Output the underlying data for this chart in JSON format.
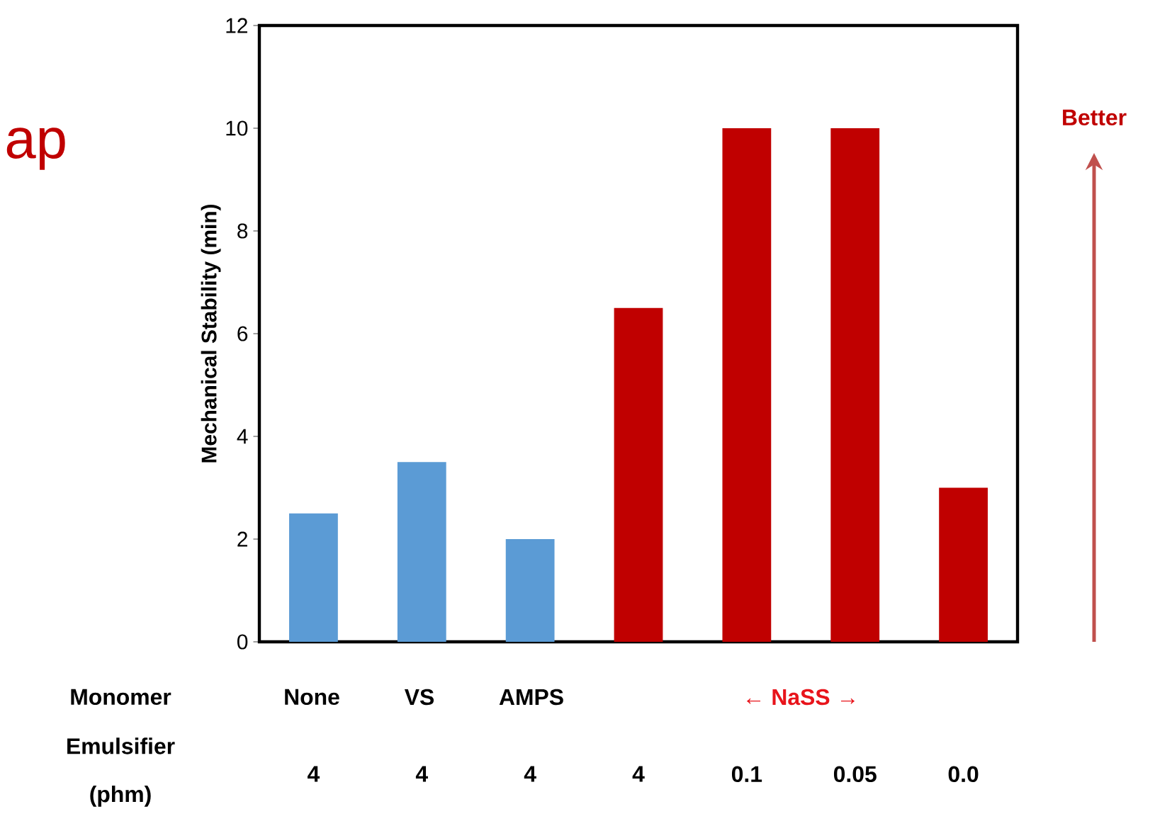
{
  "chart_data": {
    "type": "bar",
    "categories": [
      "4",
      "4",
      "4",
      "4",
      "0.1",
      "0.05",
      "0.0"
    ],
    "values": [
      2.5,
      3.5,
      2,
      6.5,
      10,
      10,
      3
    ],
    "colors": [
      "#5b9bd5",
      "#5b9bd5",
      "#5b9bd5",
      "#c00000",
      "#c00000",
      "#c00000",
      "#c00000"
    ],
    "ylabel": "Mechanical Stability (min)",
    "ylim": [
      0,
      12
    ],
    "yticks": [
      0,
      2,
      4,
      6,
      8,
      10,
      12
    ],
    "annotations": [
      "ap",
      "Monomer",
      "Emulsifier (phm)",
      "None",
      "VS",
      "AMPS",
      "←        NaSS        →",
      "Better"
    ],
    "grid": false
  }
}
